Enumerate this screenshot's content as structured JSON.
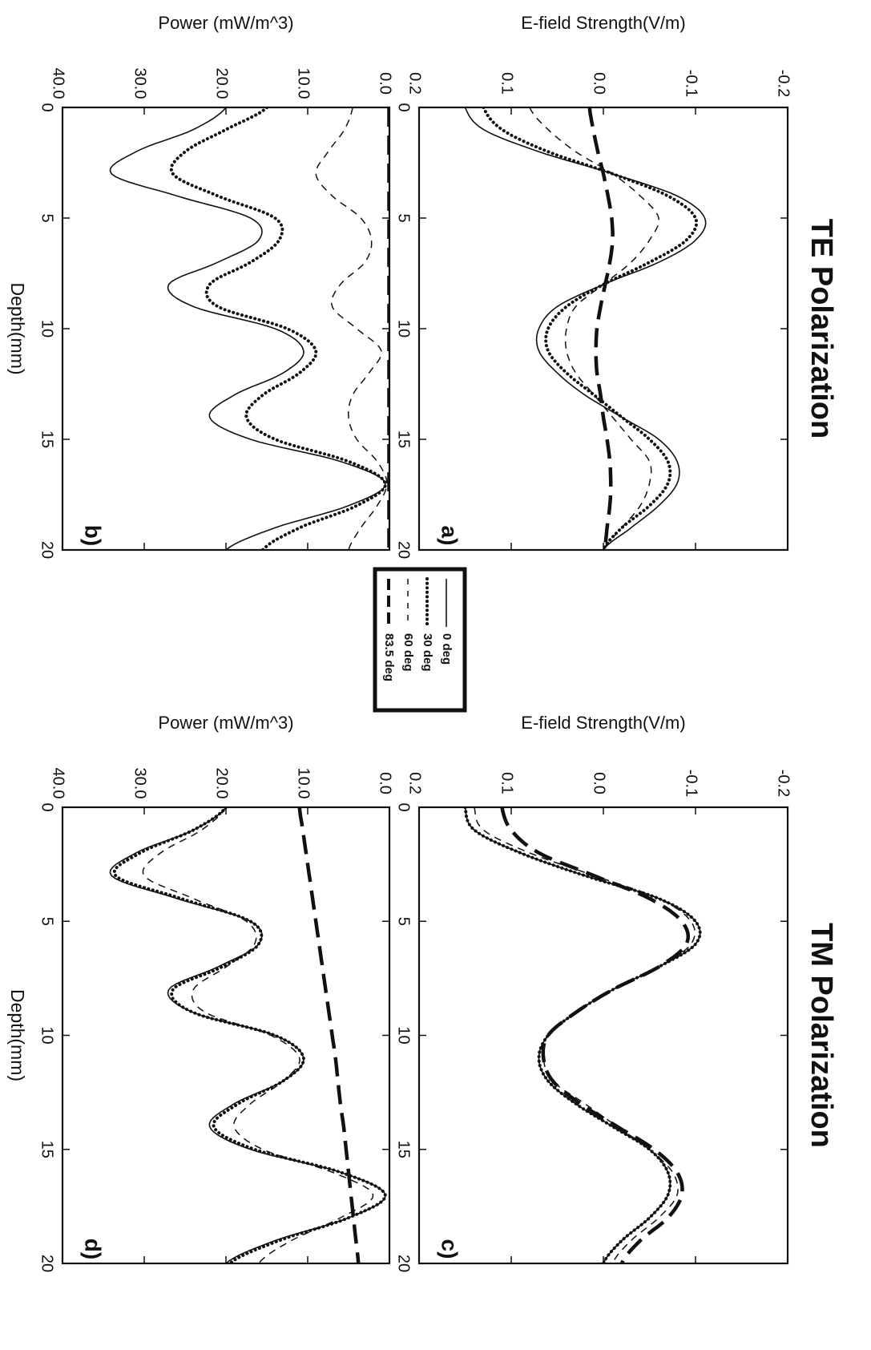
{
  "figure": {
    "legend": {
      "entries": [
        {
          "label": "0 deg",
          "style": "solid-thin"
        },
        {
          "label": "30 deg",
          "style": "dotted-thick"
        },
        {
          "label": "60 deg",
          "style": "dashed-thin"
        },
        {
          "label": "83.5 deg",
          "style": "dashed-thick"
        }
      ]
    },
    "colors": {
      "ink": "#111111",
      "background": "#ffffff"
    }
  },
  "chart_data": [
    {
      "id": "a",
      "type": "line",
      "panel_label": "a)",
      "title": "TE Polarization",
      "xlabel": "",
      "ylabel": "E-field Strength(V/m)",
      "xlim": [
        0,
        20
      ],
      "ylim": [
        -0.2,
        0.2
      ],
      "xticks": [
        0,
        5,
        10,
        15,
        20
      ],
      "yticks": [
        -0.2,
        -0.1,
        0.0,
        0.1,
        0.2
      ],
      "ytick_labels": [
        "-0.2",
        "-0.1",
        "0.0",
        "0.1",
        "0.2"
      ],
      "x": [
        0,
        1,
        2,
        3,
        4,
        5,
        6,
        7,
        8,
        9,
        10,
        11,
        12,
        13,
        14,
        15,
        16,
        17,
        18,
        19,
        20
      ],
      "series": [
        {
          "name": "0 deg",
          "style": "solid-thin",
          "values": [
            0.15,
            0.13,
            0.07,
            -0.01,
            -0.08,
            -0.11,
            -0.1,
            -0.06,
            0.0,
            0.05,
            0.07,
            0.07,
            0.05,
            0.02,
            -0.02,
            -0.06,
            -0.08,
            -0.08,
            -0.06,
            -0.03,
            0.0
          ]
        },
        {
          "name": "30 deg",
          "style": "dotted-thick",
          "values": [
            0.13,
            0.11,
            0.06,
            -0.01,
            -0.07,
            -0.1,
            -0.09,
            -0.05,
            0.0,
            0.04,
            0.06,
            0.06,
            0.04,
            0.01,
            -0.02,
            -0.05,
            -0.07,
            -0.07,
            -0.05,
            -0.02,
            0.0
          ]
        },
        {
          "name": "60 deg",
          "style": "dashed-thin",
          "values": [
            0.08,
            0.06,
            0.03,
            -0.01,
            -0.04,
            -0.06,
            -0.05,
            -0.03,
            0.0,
            0.03,
            0.04,
            0.04,
            0.03,
            0.01,
            -0.01,
            -0.03,
            -0.05,
            -0.05,
            -0.04,
            -0.02,
            0.0
          ]
        },
        {
          "name": "83.5 deg",
          "style": "dashed-thick",
          "values": [
            0.015,
            0.011,
            0.006,
            0.0,
            -0.005,
            -0.009,
            -0.01,
            -0.007,
            -0.002,
            0.003,
            0.007,
            0.008,
            0.007,
            0.003,
            0.0,
            -0.004,
            -0.007,
            -0.008,
            -0.007,
            -0.004,
            -0.002
          ]
        }
      ]
    },
    {
      "id": "b",
      "type": "line",
      "panel_label": "b)",
      "title": "",
      "xlabel": "Depth(mm)",
      "ylabel": "Power (mW/m^3)",
      "xlim": [
        0,
        20
      ],
      "ylim": [
        0,
        40
      ],
      "xticks": [
        0,
        5,
        10,
        15,
        20
      ],
      "yticks": [
        0,
        10,
        20,
        30,
        40
      ],
      "ytick_labels": [
        "0.0",
        "10.0",
        "20.0",
        "30.0",
        "40.0"
      ],
      "x": [
        0,
        1,
        2,
        3,
        4,
        5,
        6,
        7,
        8,
        9,
        10,
        11,
        12,
        13,
        14,
        15,
        16,
        17,
        18,
        19,
        20
      ],
      "series": [
        {
          "name": "0 deg",
          "style": "solid-thin",
          "values": [
            20.0,
            24.0,
            31.0,
            34.0,
            26.0,
            17.0,
            16.0,
            21.0,
            27.0,
            24.0,
            14.0,
            10.5,
            13.0,
            19.0,
            22.0,
            17.0,
            6.0,
            0.5,
            5.0,
            14.0,
            20.0
          ]
        },
        {
          "name": "30 deg",
          "style": "dotted-thick",
          "values": [
            15.0,
            20.0,
            25.0,
            26.5,
            21.0,
            14.0,
            13.5,
            17.0,
            22.0,
            21.0,
            12.5,
            9.0,
            11.0,
            15.5,
            17.5,
            14.0,
            5.0,
            0.5,
            4.0,
            11.0,
            15.5
          ]
        },
        {
          "name": "60 deg",
          "style": "dashed-thin",
          "values": [
            4.5,
            5.5,
            7.5,
            9.0,
            7.0,
            3.5,
            2.2,
            3.0,
            6.0,
            7.0,
            4.0,
            1.0,
            2.5,
            4.5,
            5.0,
            4.0,
            1.5,
            0.3,
            1.5,
            3.5,
            5.0
          ]
        },
        {
          "name": "83.5 deg",
          "style": "dashed-thick",
          "values": [
            0.05,
            0.05,
            0.05,
            0.05,
            0.05,
            0.05,
            0.05,
            0.05,
            0.05,
            0.05,
            0.05,
            0.05,
            0.05,
            0.05,
            0.05,
            0.05,
            0.05,
            0.05,
            0.05,
            0.05,
            0.05
          ]
        }
      ]
    },
    {
      "id": "c",
      "type": "line",
      "panel_label": "c)",
      "title": "TM Polarization",
      "xlabel": "",
      "ylabel": "E-field Strength(V/m)",
      "xlim": [
        0,
        20
      ],
      "ylim": [
        -0.2,
        0.2
      ],
      "xticks": [
        0,
        5,
        10,
        15,
        20
      ],
      "yticks": [
        -0.2,
        -0.1,
        0.0,
        0.1,
        0.2
      ],
      "ytick_labels": [
        "-0.2",
        "-0.1",
        "0.0",
        "0.1",
        "0.2"
      ],
      "x": [
        0,
        1,
        2,
        3,
        4,
        5,
        6,
        7,
        8,
        9,
        10,
        11,
        12,
        13,
        14,
        15,
        16,
        17,
        18,
        19,
        20
      ],
      "series": [
        {
          "name": "0 deg",
          "style": "solid-thin",
          "values": [
            0.15,
            0.14,
            0.09,
            0.02,
            -0.06,
            -0.1,
            -0.1,
            -0.06,
            -0.01,
            0.03,
            0.06,
            0.07,
            0.06,
            0.03,
            -0.01,
            -0.05,
            -0.07,
            -0.07,
            -0.05,
            -0.02,
            0.0
          ]
        },
        {
          "name": "30 deg",
          "style": "dotted-thick",
          "values": [
            0.15,
            0.14,
            0.09,
            0.02,
            -0.06,
            -0.1,
            -0.1,
            -0.06,
            -0.01,
            0.03,
            0.06,
            0.07,
            0.06,
            0.03,
            -0.01,
            -0.05,
            -0.07,
            -0.07,
            -0.05,
            -0.02,
            0.0
          ]
        },
        {
          "name": "60 deg",
          "style": "dashed-thin",
          "values": [
            0.14,
            0.13,
            0.08,
            0.01,
            -0.06,
            -0.095,
            -0.095,
            -0.06,
            -0.01,
            0.03,
            0.06,
            0.065,
            0.055,
            0.02,
            -0.015,
            -0.05,
            -0.075,
            -0.08,
            -0.06,
            -0.03,
            -0.01
          ]
        },
        {
          "name": "83.5 deg",
          "style": "dashed-thick",
          "values": [
            0.11,
            0.1,
            0.07,
            0.01,
            -0.05,
            -0.085,
            -0.09,
            -0.06,
            -0.01,
            0.03,
            0.06,
            0.065,
            0.055,
            0.025,
            -0.015,
            -0.055,
            -0.08,
            -0.085,
            -0.07,
            -0.04,
            -0.02
          ]
        }
      ]
    },
    {
      "id": "d",
      "type": "line",
      "panel_label": "d)",
      "title": "",
      "xlabel": "Depth(mm)",
      "ylabel": "Power (mW/m^3)",
      "xlim": [
        0,
        20
      ],
      "ylim": [
        0,
        40
      ],
      "xticks": [
        0,
        5,
        10,
        15,
        20
      ],
      "yticks": [
        0,
        10,
        20,
        30,
        40
      ],
      "ytick_labels": [
        "0.0",
        "10.0",
        "20.0",
        "30.0",
        "40.0"
      ],
      "x": [
        0,
        1,
        2,
        3,
        4,
        5,
        6,
        7,
        8,
        9,
        10,
        11,
        12,
        13,
        14,
        15,
        16,
        17,
        18,
        19,
        20
      ],
      "series": [
        {
          "name": "0 deg",
          "style": "solid-thin",
          "values": [
            20.0,
            24.0,
            31.0,
            34.0,
            26.0,
            17.0,
            16.0,
            21.0,
            27.0,
            24.0,
            14.0,
            10.5,
            13.0,
            19.0,
            22.0,
            17.0,
            6.0,
            0.5,
            5.0,
            14.0,
            20.0
          ]
        },
        {
          "name": "30 deg",
          "style": "dotted-thick",
          "values": [
            20.0,
            24.0,
            30.5,
            33.5,
            25.5,
            17.0,
            16.0,
            20.5,
            26.5,
            24.0,
            14.0,
            10.5,
            13.0,
            18.5,
            21.5,
            16.5,
            6.0,
            0.5,
            5.0,
            13.5,
            19.5
          ]
        },
        {
          "name": "60 deg",
          "style": "dashed-thin",
          "values": [
            20.0,
            23.0,
            28.0,
            30.0,
            24.0,
            17.5,
            16.5,
            20.0,
            24.0,
            22.5,
            14.5,
            11.0,
            13.0,
            17.0,
            19.0,
            15.5,
            7.0,
            2.0,
            6.0,
            12.0,
            16.0
          ]
        },
        {
          "name": "83.5 deg",
          "style": "dashed-thick",
          "values": [
            11.0,
            10.6,
            10.2,
            9.8,
            9.4,
            9.0,
            8.6,
            8.2,
            7.8,
            7.4,
            7.0,
            6.6,
            6.3,
            6.0,
            5.6,
            5.3,
            5.0,
            4.7,
            4.4,
            4.1,
            3.8
          ]
        }
      ]
    }
  ]
}
